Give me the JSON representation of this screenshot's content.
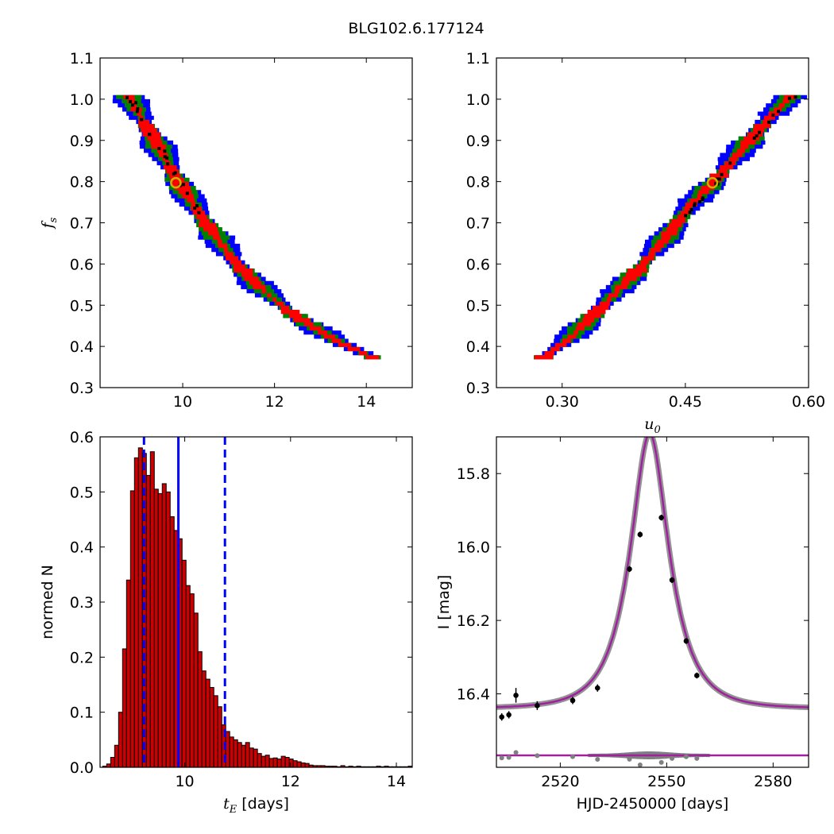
{
  "figure": {
    "title": "BLG102.6.177124"
  },
  "colors": {
    "sigma1": "#ff0000",
    "sigma2": "#008000",
    "sigma3": "#0000ff",
    "best": "#000000",
    "marker": "#c8b400",
    "hist_bar": "#cc0000",
    "hist_edge": "#000000",
    "hist_line": "#0000ff",
    "model": "#a020a0",
    "data": "#000000",
    "residual": "#808080"
  },
  "chart_data": [
    {
      "type": "heatmap",
      "panel": "top-left",
      "xlabel": "",
      "ylabel": "f_s",
      "xlim": [
        8.2,
        15.0
      ],
      "ylim": [
        0.3,
        1.1
      ],
      "xticks": [
        "10",
        "12",
        "14"
      ],
      "yticks": [
        "0.3",
        "0.4",
        "0.5",
        "0.6",
        "0.7",
        "0.8",
        "0.9",
        "1.0",
        "1.1"
      ],
      "legend": "none",
      "ridge": [
        [
          8.8,
          1.01
        ],
        [
          9.4,
          0.9
        ],
        [
          9.9,
          0.8
        ],
        [
          10.5,
          0.7
        ],
        [
          11.1,
          0.61
        ],
        [
          11.7,
          0.54
        ],
        [
          12.5,
          0.47
        ],
        [
          13.4,
          0.41
        ],
        [
          14.2,
          0.37
        ]
      ],
      "best_fit": {
        "x": 9.85,
        "y": 0.797
      }
    },
    {
      "type": "heatmap",
      "panel": "top-right",
      "xlabel": "u_0",
      "ylabel": "",
      "xlim": [
        0.22,
        0.6
      ],
      "ylim": [
        0.3,
        1.1
      ],
      "xticks": [
        "0.30",
        "0.45",
        "0.60"
      ],
      "yticks": [
        "0.3",
        "0.4",
        "0.5",
        "0.6",
        "0.7",
        "0.8",
        "0.9",
        "1.0",
        "1.1"
      ],
      "legend": "none",
      "ridge": [
        [
          0.275,
          0.37
        ],
        [
          0.31,
          0.42
        ],
        [
          0.35,
          0.5
        ],
        [
          0.39,
          0.58
        ],
        [
          0.425,
          0.66
        ],
        [
          0.455,
          0.74
        ],
        [
          0.485,
          0.8
        ],
        [
          0.52,
          0.88
        ],
        [
          0.55,
          0.95
        ],
        [
          0.58,
          1.01
        ]
      ],
      "best_fit": {
        "x": 0.483,
        "y": 0.797
      }
    },
    {
      "type": "bar",
      "panel": "bottom-left",
      "xlabel": "t_E [days]",
      "ylabel": "normed N",
      "xlim": [
        8.4,
        14.3
      ],
      "ylim": [
        0.0,
        0.6
      ],
      "xticks": [
        "10",
        "12",
        "14"
      ],
      "yticks": [
        "0.0",
        "0.1",
        "0.2",
        "0.3",
        "0.4",
        "0.5",
        "0.6"
      ],
      "legend": "none",
      "bin_start": 8.45,
      "bin_width": 0.075,
      "values": [
        0.002,
        0.006,
        0.018,
        0.04,
        0.1,
        0.215,
        0.34,
        0.502,
        0.562,
        0.58,
        0.57,
        0.53,
        0.573,
        0.505,
        0.497,
        0.515,
        0.5,
        0.455,
        0.43,
        0.415,
        0.376,
        0.33,
        0.315,
        0.28,
        0.21,
        0.175,
        0.16,
        0.145,
        0.13,
        0.11,
        0.077,
        0.065,
        0.055,
        0.05,
        0.045,
        0.04,
        0.045,
        0.035,
        0.033,
        0.025,
        0.02,
        0.022,
        0.016,
        0.017,
        0.015,
        0.02,
        0.018,
        0.015,
        0.012,
        0.01,
        0.008,
        0.007,
        0.004,
        0.003,
        0.003,
        0.003,
        0.002,
        0.002,
        0.002,
        0.001,
        0.003,
        0.001,
        0.002,
        0.001,
        0.002,
        0.001,
        0.001,
        0.001,
        0.001,
        0.002,
        0.001,
        0.002,
        0.001,
        0.001,
        0.001,
        0.001,
        0.001,
        0.002
      ],
      "median": 9.88,
      "interval": [
        9.23,
        10.76
      ]
    },
    {
      "type": "line",
      "panel": "bottom-right",
      "xlabel": "HJD-2450000 [days]",
      "ylabel": "I [mag]",
      "xlim": [
        2502,
        2590
      ],
      "ylim": [
        16.6,
        15.7
      ],
      "y_inverted": true,
      "xticks": [
        "2520",
        "2550",
        "2580"
      ],
      "yticks": [
        "15.8",
        "16.0",
        "16.2",
        "16.4"
      ],
      "legend": "none",
      "model": {
        "t0": 2545.2,
        "tE": 9.85,
        "u0": 0.483,
        "fs": 0.797,
        "baseline": 16.44
      },
      "points": [
        {
          "x": 2503.5,
          "y": 16.463,
          "err": 0.01
        },
        {
          "x": 2505.5,
          "y": 16.457,
          "err": 0.01
        },
        {
          "x": 2507.5,
          "y": 16.404,
          "err": 0.02
        },
        {
          "x": 2513.5,
          "y": 16.432,
          "err": 0.012
        },
        {
          "x": 2523.5,
          "y": 16.418,
          "err": 0.01
        },
        {
          "x": 2530.5,
          "y": 16.384,
          "err": 0.01
        },
        {
          "x": 2539.5,
          "y": 16.06,
          "err": 0.008
        },
        {
          "x": 2542.5,
          "y": 15.966,
          "err": 0.008
        },
        {
          "x": 2548.5,
          "y": 15.92,
          "err": 0.008
        },
        {
          "x": 2551.5,
          "y": 16.09,
          "err": 0.008
        },
        {
          "x": 2555.5,
          "y": 16.256,
          "err": 0.008
        },
        {
          "x": 2558.5,
          "y": 16.35,
          "err": 0.008
        }
      ]
    }
  ]
}
